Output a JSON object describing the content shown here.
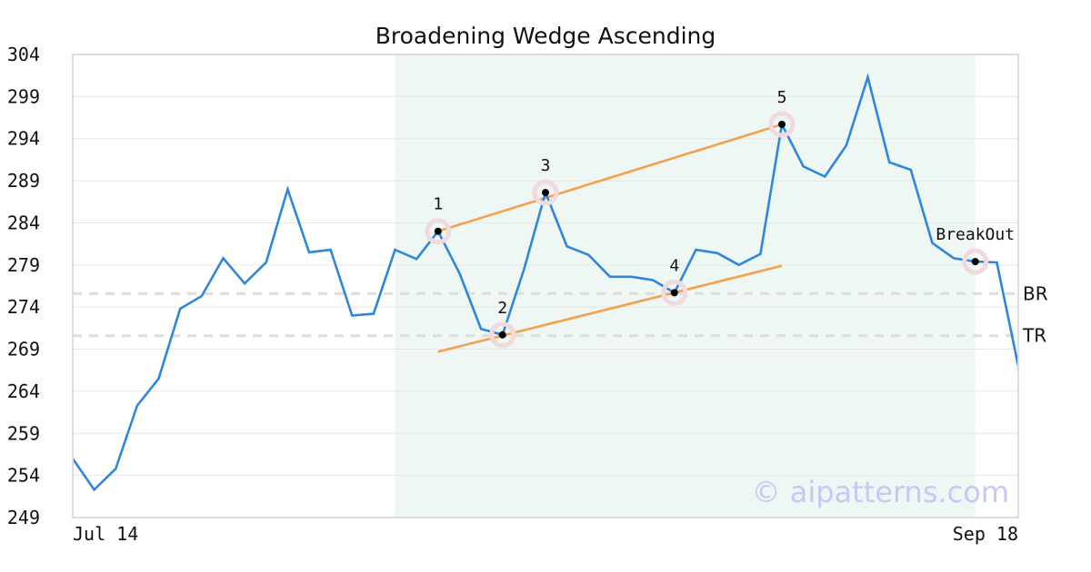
{
  "chart_data": {
    "type": "line",
    "title": "Broadening Wedge Ascending",
    "xlabel": "",
    "ylabel": "",
    "x_tick_labels": [
      "Jul 14",
      "Sep 18"
    ],
    "y_ticks": [
      249,
      254,
      259,
      264,
      269,
      274,
      279,
      284,
      289,
      294,
      299,
      304
    ],
    "ylim": [
      249,
      304
    ],
    "grid": "horizontal",
    "series": [
      {
        "color": "#2e86de",
        "values": [
          256,
          252.3,
          254.8,
          262.3,
          265.5,
          273.8,
          275.3,
          279.8,
          276.8,
          279.3,
          288,
          280.5,
          280.8,
          273,
          273.2,
          280.8,
          279.7,
          283,
          278,
          271.4,
          270.7,
          278.5,
          287.6,
          281.2,
          280.2,
          277.6,
          277.6,
          277.2,
          275.7,
          280.8,
          280.4,
          279,
          280.3,
          295.7,
          290.7,
          289.5,
          293.2,
          301.3,
          291.2,
          290.3,
          281.6,
          279.8,
          279.4,
          279.3,
          267
        ]
      }
    ],
    "highlight_range": {
      "start_index": 15,
      "end_index": 42,
      "color": "#eef7f3"
    },
    "pivots": [
      {
        "label": "1",
        "index": 17,
        "value": 283
      },
      {
        "label": "2",
        "index": 20,
        "value": 270.7
      },
      {
        "label": "3",
        "index": 22,
        "value": 287.6
      },
      {
        "label": "4",
        "index": 28,
        "value": 275.7
      },
      {
        "label": "5",
        "index": 33,
        "value": 295.7
      },
      {
        "label": "BreakOut",
        "index": 42,
        "value": 279.4
      }
    ],
    "trendlines": [
      {
        "from_index": 17,
        "from_value": 283,
        "to_index": 33,
        "to_value": 295.7,
        "color": "#f5a04a"
      },
      {
        "from_index": 17,
        "from_value": 268.7,
        "to_index": 33,
        "to_value": 278.9,
        "color": "#f5a04a"
      }
    ],
    "levels": [
      {
        "label": "BR",
        "value": 275.6
      },
      {
        "label": "TR",
        "value": 270.6
      }
    ],
    "watermark": "© aipatterns.com"
  }
}
